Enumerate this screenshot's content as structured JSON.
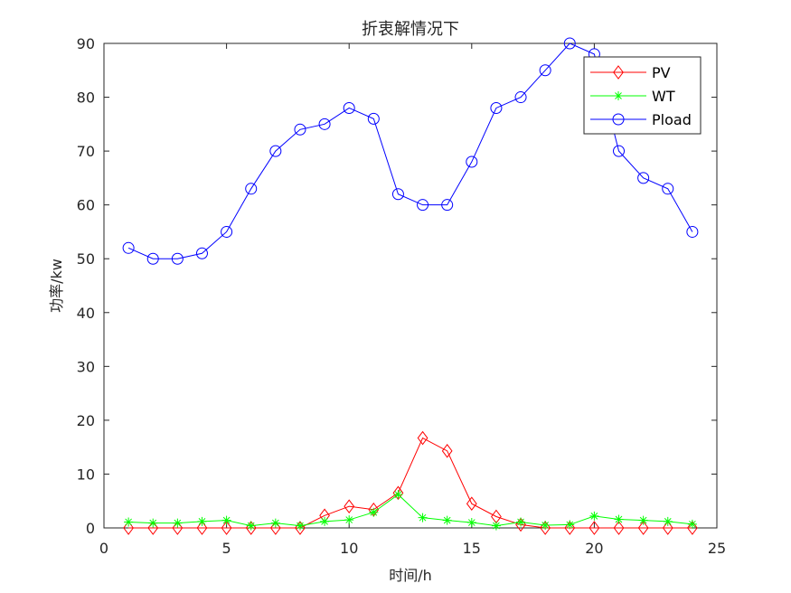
{
  "chart_data": {
    "type": "line",
    "title": "折衷解情况下",
    "xlabel": "时间/h",
    "ylabel": "功率/kw",
    "xlim": [
      0,
      25
    ],
    "ylim": [
      0,
      90
    ],
    "xticks": [
      0,
      5,
      10,
      15,
      20,
      25
    ],
    "yticks": [
      0,
      10,
      20,
      30,
      40,
      50,
      60,
      70,
      80,
      90
    ],
    "grid": false,
    "legend_position": "top-right",
    "x": [
      1,
      2,
      3,
      4,
      5,
      6,
      7,
      8,
      9,
      10,
      11,
      12,
      13,
      14,
      15,
      16,
      17,
      18,
      19,
      20,
      21,
      22,
      23,
      24
    ],
    "series": [
      {
        "name": "PV",
        "color": "#ff0000",
        "marker": "diamond",
        "values": [
          0,
          0,
          0,
          0,
          0,
          0,
          0,
          0,
          2.3,
          4.0,
          3.4,
          6.5,
          16.7,
          14.3,
          4.5,
          2.1,
          0.6,
          0,
          0,
          0,
          0,
          0,
          0,
          0
        ]
      },
      {
        "name": "WT",
        "color": "#00ff00",
        "marker": "asterisk",
        "values": [
          1.1,
          0.9,
          0.9,
          1.2,
          1.4,
          0.4,
          0.9,
          0.4,
          1.2,
          1.5,
          2.9,
          6.2,
          1.9,
          1.4,
          1.0,
          0.4,
          1.1,
          0.5,
          0.6,
          2.2,
          1.6,
          1.4,
          1.2,
          0.7
        ]
      },
      {
        "name": "Pload",
        "color": "#0000ff",
        "marker": "circle",
        "values": [
          52,
          50,
          50,
          51,
          55,
          63,
          70,
          74,
          75,
          78,
          76,
          62,
          60,
          60,
          68,
          78,
          80,
          85,
          90,
          88,
          70,
          65,
          63,
          55
        ]
      }
    ]
  }
}
